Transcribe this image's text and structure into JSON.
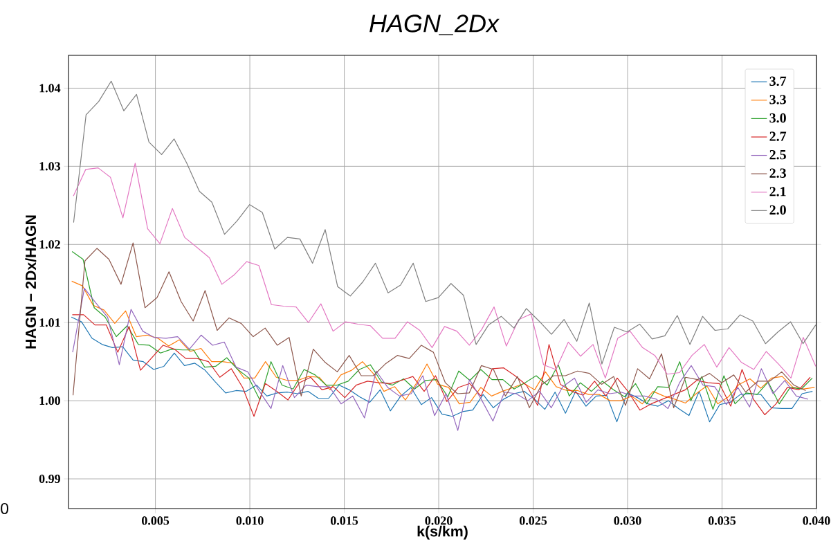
{
  "chart_data": {
    "type": "line",
    "title": "HAGN_2Dx",
    "xlabel": "k(s/km)",
    "ylabel": "HAGN − 2Dx/HAGN",
    "annotations": [
      "0"
    ],
    "xlim": [
      0.0004,
      0.04
    ],
    "ylim": [
      0.9862,
      1.0442
    ],
    "xticks": [
      {
        "value": 0.005,
        "label": "0.005"
      },
      {
        "value": 0.01,
        "label": "0.010"
      },
      {
        "value": 0.015,
        "label": "0.015"
      },
      {
        "value": 0.02,
        "label": "0.020"
      },
      {
        "value": 0.025,
        "label": "0.025"
      },
      {
        "value": 0.03,
        "label": "0.030"
      },
      {
        "value": 0.035,
        "label": "0.035"
      },
      {
        "value": 0.04,
        "label": "0.040"
      }
    ],
    "yticks": [
      {
        "value": 0.99,
        "label": "0.99"
      },
      {
        "value": 1.0,
        "label": "1.00"
      },
      {
        "value": 1.01,
        "label": "1.01"
      },
      {
        "value": 1.02,
        "label": "1.02"
      },
      {
        "value": 1.03,
        "label": "1.03"
      },
      {
        "value": 1.04,
        "label": "1.04"
      }
    ],
    "grid": true,
    "legend": "top right",
    "series": [
      {
        "name": "3.7",
        "color": "#1f77b4",
        "x": [
          0.00055,
          0.00109,
          0.00164,
          0.00218,
          0.00273,
          0.00327,
          0.00382,
          0.00436,
          0.00491,
          0.00545,
          0.006,
          0.00654,
          0.00709,
          0.00763,
          0.00818,
          0.00872,
          0.00927,
          0.00981,
          0.01036,
          0.0109,
          0.01145,
          0.01199,
          0.01254,
          0.01308,
          0.01363,
          0.01417,
          0.01472,
          0.01526,
          0.01581,
          0.01635,
          0.0169,
          0.01744,
          0.01799,
          0.01853,
          0.01908,
          0.01962,
          0.02017,
          0.02071,
          0.02126,
          0.0218,
          0.02235,
          0.02289,
          0.02344,
          0.02398,
          0.02453,
          0.02507,
          0.02562,
          0.02616,
          0.02671,
          0.02725,
          0.0278,
          0.02834,
          0.02889,
          0.02943,
          0.02998,
          0.03052,
          0.03107,
          0.03161,
          0.03216,
          0.0327,
          0.03325,
          0.03379,
          0.03434,
          0.03488,
          0.03543,
          0.03597,
          0.03652,
          0.03706,
          0.03761,
          0.03815,
          0.0387,
          0.03924,
          0.03979
        ],
        "values": [
          1.0107,
          1.0101,
          1.008,
          1.0072,
          1.0068,
          1.0069,
          1.0052,
          1.005,
          1.004,
          1.0044,
          1.0061,
          1.0045,
          1.0048,
          1.0039,
          1.0024,
          1.001,
          1.0013,
          1.0012,
          1.002,
          1.0006,
          1.001,
          1.0011,
          1.0009,
          1.0012,
          1.0003,
          1.0003,
          1.002,
          1.0014,
          1.0005,
          0.9998,
          1.0014,
          0.9987,
          1.0006,
          1.0017,
          0.9995,
          1.0004,
          0.9983,
          0.998,
          0.9986,
          0.9988,
          1.0008,
          0.9991,
          1.0002,
          1.0009,
          1.0012,
          1.0002,
          0.9989,
          1.0011,
          0.9984,
          1.0012,
          0.9993,
          1.0006,
          1.0007,
          0.9973,
          1.001,
          1.0004,
          0.9996,
          0.9993,
          1.0,
          0.999,
          0.9981,
          1.0012,
          0.9973,
          0.9995,
          0.9998,
          1.0008,
          1.0009,
          1.0008,
          0.9991,
          0.999,
          0.999,
          1.0009,
          1.0012
        ]
      },
      {
        "name": "3.3",
        "color": "#ff7f0e",
        "x": [
          0.00057,
          0.00114,
          0.00171,
          0.00228,
          0.00285,
          0.00342,
          0.00399,
          0.00456,
          0.00513,
          0.0057,
          0.00627,
          0.00684,
          0.00741,
          0.00798,
          0.00855,
          0.00912,
          0.00969,
          0.01026,
          0.01083,
          0.0114,
          0.01197,
          0.01254,
          0.01311,
          0.01368,
          0.01425,
          0.01482,
          0.01539,
          0.01596,
          0.01653,
          0.0171,
          0.01767,
          0.01824,
          0.01881,
          0.01938,
          0.01995,
          0.02052,
          0.02109,
          0.02166,
          0.02223,
          0.0228,
          0.02337,
          0.02394,
          0.02451,
          0.02508,
          0.02565,
          0.02622,
          0.02679,
          0.02736,
          0.02793,
          0.0285,
          0.02907,
          0.02964,
          0.03021,
          0.03078,
          0.03135,
          0.03192,
          0.03249,
          0.03306,
          0.03363,
          0.0342,
          0.03477,
          0.03534,
          0.03591,
          0.03648,
          0.03705,
          0.03762,
          0.03819,
          0.03876,
          0.03933,
          0.0399
        ],
        "values": [
          1.0153,
          1.0147,
          1.0122,
          1.0116,
          1.0099,
          1.0115,
          1.0082,
          1.0084,
          1.008,
          1.007,
          1.0078,
          1.0063,
          1.0067,
          1.005,
          1.005,
          1.0048,
          1.0029,
          1.0029,
          1.005,
          1.003,
          1.0026,
          1.0026,
          1.0031,
          1.003,
          1.0014,
          1.0033,
          1.0039,
          1.005,
          1.0035,
          1.0012,
          1.0018,
          1.0001,
          1.0022,
          1.0047,
          1.0021,
          1.0017,
          0.9996,
          0.9998,
          1.0017,
          1.0006,
          1.0012,
          1.0017,
          1.0022,
          1.0014,
          1.0037,
          1.0018,
          1.0013,
          1.0013,
          1.0008,
          1.0008,
          1.0,
          1.0,
          1.0006,
          0.9996,
          1.0012,
          1.0006,
          1.0002,
          0.9997,
          1.0009,
          1.0019,
          0.9996,
          1.0005,
          1.0021,
          1.0028,
          1.0016,
          1.0029,
          1.0031,
          1.0017,
          1.0015,
          1.0017
        ]
      },
      {
        "name": "3.0",
        "color": "#2ca02c",
        "x": [
          0.00059,
          0.00117,
          0.00176,
          0.00234,
          0.00293,
          0.00351,
          0.0041,
          0.00468,
          0.00527,
          0.00585,
          0.00644,
          0.00702,
          0.00761,
          0.00819,
          0.00878,
          0.00936,
          0.00995,
          0.01053,
          0.01112,
          0.0117,
          0.01229,
          0.01287,
          0.01346,
          0.01404,
          0.01463,
          0.01521,
          0.0158,
          0.01638,
          0.01697,
          0.01755,
          0.01814,
          0.01872,
          0.01931,
          0.01989,
          0.02048,
          0.02106,
          0.02165,
          0.02223,
          0.02282,
          0.0234,
          0.02399,
          0.02457,
          0.02516,
          0.02574,
          0.02633,
          0.02691,
          0.0275,
          0.02808,
          0.02867,
          0.02925,
          0.02984,
          0.03042,
          0.03101,
          0.03159,
          0.03218,
          0.03276,
          0.03335,
          0.03393,
          0.03452,
          0.0351,
          0.03569,
          0.03627,
          0.03686,
          0.03744,
          0.03803,
          0.03861,
          0.0392,
          0.03978
        ],
        "values": [
          1.0191,
          1.0181,
          1.0119,
          1.0107,
          1.0082,
          1.0096,
          1.0072,
          1.0071,
          1.0061,
          1.0066,
          1.0065,
          1.0065,
          1.0043,
          1.0044,
          1.0055,
          1.004,
          1.0029,
          1.0001,
          1.005,
          1.002,
          1.0015,
          1.004,
          1.0033,
          1.002,
          1.002,
          1.0025,
          1.004,
          1.0046,
          1.0024,
          1.002,
          1.0028,
          1.0015,
          1.0026,
          1.0027,
          1.0005,
          1.0038,
          1.0026,
          1.004,
          1.0027,
          1.0027,
          1.0015,
          1.0023,
          1.0032,
          1.002,
          1.0046,
          1.0006,
          1.0023,
          1.0012,
          1.0025,
          1.0014,
          1.0005,
          1.0022,
          0.9996,
          1.0018,
          1.0017,
          1.005,
          1.0,
          1.0031,
          0.9989,
          1.0032,
          0.9996,
          1.001,
          1.0008,
          1.0024,
          0.9996,
          1.0017,
          1.0015,
          1.0029
        ]
      },
      {
        "name": "2.7",
        "color": "#d62728",
        "x": [
          0.0006,
          0.0012,
          0.0018,
          0.0024,
          0.00301,
          0.00361,
          0.00421,
          0.00481,
          0.00541,
          0.00601,
          0.00661,
          0.00721,
          0.00781,
          0.00841,
          0.00902,
          0.00962,
          0.01022,
          0.01082,
          0.01142,
          0.01202,
          0.01262,
          0.01322,
          0.01382,
          0.01442,
          0.01503,
          0.01563,
          0.01623,
          0.01683,
          0.01743,
          0.01803,
          0.01863,
          0.01923,
          0.01983,
          0.02043,
          0.02104,
          0.02164,
          0.02224,
          0.02284,
          0.02344,
          0.02404,
          0.02464,
          0.02524,
          0.02584,
          0.02644,
          0.02705,
          0.02765,
          0.02825,
          0.02885,
          0.02945,
          0.03005,
          0.03065,
          0.03125,
          0.03185,
          0.03245,
          0.03306,
          0.03366,
          0.03426,
          0.03486,
          0.03546,
          0.03606,
          0.03666,
          0.03726,
          0.03786,
          0.03846,
          0.03907,
          0.03967
        ],
        "values": [
          1.011,
          1.011,
          1.0097,
          1.0097,
          1.0062,
          1.0095,
          1.0039,
          1.0055,
          1.0071,
          1.0066,
          1.0054,
          1.0054,
          1.005,
          1.003,
          1.0041,
          1.0017,
          0.998,
          1.0022,
          1.0012,
          1.0001,
          1.0023,
          1.003,
          1.0014,
          1.0018,
          1.0004,
          1.002,
          1.0025,
          1.0023,
          1.0022,
          1.0026,
          1.0031,
          1.0012,
          1.0032,
          0.9999,
          1.0017,
          1.0022,
          1.0006,
          1.0041,
          1.0042,
          1.0032,
          1.002,
          0.9994,
          1.0072,
          1.0021,
          1.0012,
          1.0007,
          1.0025,
          1.0006,
          1.0029,
          1.0011,
          0.9988,
          0.9996,
          1.0002,
          1.0008,
          1.0014,
          1.0026,
          1.0023,
          1.0022,
          0.9993,
          1.004,
          1.0002,
          0.9982,
          0.9996,
          1.0017,
          1.0014,
          1.003
        ]
      },
      {
        "name": "2.5",
        "color": "#9467bd",
        "x": [
          0.00062,
          0.00124,
          0.00185,
          0.00247,
          0.00309,
          0.00371,
          0.00433,
          0.00494,
          0.00556,
          0.00618,
          0.0068,
          0.00742,
          0.00803,
          0.00865,
          0.00927,
          0.00989,
          0.01051,
          0.01112,
          0.01174,
          0.01236,
          0.01298,
          0.0136,
          0.01421,
          0.01483,
          0.01545,
          0.01607,
          0.01669,
          0.0173,
          0.01792,
          0.01854,
          0.01916,
          0.01978,
          0.02039,
          0.02101,
          0.02163,
          0.02225,
          0.02287,
          0.02348,
          0.0241,
          0.02472,
          0.02534,
          0.02596,
          0.02657,
          0.02719,
          0.02781,
          0.02843,
          0.02905,
          0.02966,
          0.03028,
          0.0309,
          0.03152,
          0.03214,
          0.03275,
          0.03337,
          0.03399,
          0.03461,
          0.03523,
          0.03584,
          0.03646,
          0.03708,
          0.0377,
          0.03832,
          0.03893,
          0.03955
        ],
        "values": [
          1.0062,
          1.0144,
          1.0125,
          1.0107,
          1.0046,
          1.0117,
          1.0089,
          1.0081,
          1.008,
          1.0082,
          1.0066,
          1.0084,
          1.0071,
          1.0075,
          1.0043,
          1.0037,
          1.0012,
          0.999,
          1.0045,
          1.0004,
          1.002,
          1.0018,
          1.0018,
          0.9996,
          1.0006,
          0.9978,
          1.0038,
          1.0017,
          1.0006,
          1.0009,
          1.0032,
          0.9981,
          1.0009,
          0.9962,
          1.0027,
          1.0002,
          0.9974,
          1.0011,
          1.0009,
          1.0,
          1.0012,
          0.9991,
          1.0018,
          1.0029,
          0.9998,
          1.0014,
          1.0009,
          1.0011,
          1.0006,
          1.0006,
          1.0002,
          0.999,
          1.0023,
          1.0045,
          1.002,
          1.0018,
          0.9995,
          1.0017,
          0.9992,
          1.0041,
          1.0009,
          1.0026,
          1.0006,
          1.0002
        ]
      },
      {
        "name": "2.3",
        "color": "#8c564b",
        "x": [
          0.00064,
          0.00127,
          0.00191,
          0.00254,
          0.00318,
          0.00382,
          0.00445,
          0.00509,
          0.00572,
          0.00636,
          0.007,
          0.00763,
          0.00827,
          0.0089,
          0.00954,
          0.01018,
          0.01081,
          0.01145,
          0.01208,
          0.01272,
          0.01336,
          0.01399,
          0.01463,
          0.01526,
          0.0159,
          0.01654,
          0.01717,
          0.01781,
          0.01844,
          0.01908,
          0.01972,
          0.02035,
          0.02099,
          0.02162,
          0.02226,
          0.0229,
          0.02353,
          0.02417,
          0.0248,
          0.02544,
          0.02608,
          0.02671,
          0.02735,
          0.02798,
          0.02862,
          0.02926,
          0.02989,
          0.03053,
          0.03116,
          0.0318,
          0.03244,
          0.03307,
          0.03371,
          0.03434,
          0.03498,
          0.03562,
          0.03625,
          0.03689,
          0.03752,
          0.03816,
          0.0388,
          0.03943
        ],
        "values": [
          1.0007,
          1.0179,
          1.0195,
          1.0181,
          1.0149,
          1.0202,
          1.0119,
          1.0132,
          1.0165,
          1.0127,
          1.0102,
          1.0141,
          1.009,
          1.0106,
          1.0099,
          1.0082,
          1.0093,
          1.0071,
          1.0081,
          1.0006,
          1.0066,
          1.0049,
          1.0037,
          1.0058,
          1.0032,
          1.0032,
          1.0047,
          1.0058,
          1.0054,
          1.0071,
          1.0062,
          1.0023,
          1.0009,
          1.001,
          1.0045,
          1.004,
          1.0006,
          1.0031,
          0.9991,
          1.002,
          1.0032,
          1.0032,
          1.0038,
          1.0035,
          1.0021,
          1.0031,
          0.9994,
          1.0041,
          1.0028,
          1.006,
          0.9991,
          1.003,
          1.0027,
          1.0035,
          1.0023,
          1.0033,
          1.0011,
          1.0025,
          1.0025,
          1.0037,
          1.002,
          1.0013
        ]
      },
      {
        "name": "2.1",
        "color": "#e377c2",
        "x": [
          0.00066,
          0.00131,
          0.00197,
          0.00262,
          0.00328,
          0.00393,
          0.00459,
          0.00524,
          0.0059,
          0.00655,
          0.00721,
          0.00786,
          0.00852,
          0.00917,
          0.00983,
          0.01048,
          0.01114,
          0.01179,
          0.01245,
          0.0131,
          0.01376,
          0.01441,
          0.01507,
          0.01572,
          0.01638,
          0.01703,
          0.01769,
          0.01834,
          0.019,
          0.01965,
          0.02031,
          0.02096,
          0.02162,
          0.02227,
          0.02293,
          0.02358,
          0.02424,
          0.02489,
          0.02555,
          0.0262,
          0.02686,
          0.02751,
          0.02817,
          0.02882,
          0.02948,
          0.03013,
          0.03079,
          0.03144,
          0.0321,
          0.03275,
          0.03341,
          0.03406,
          0.03472,
          0.03537,
          0.03603,
          0.03668,
          0.03734,
          0.03799,
          0.03865,
          0.0393,
          0.03996
        ],
        "values": [
          1.0262,
          1.0296,
          1.0298,
          1.0286,
          1.0234,
          1.0304,
          1.022,
          1.0201,
          1.0246,
          1.0209,
          1.0196,
          1.0183,
          1.0149,
          1.0161,
          1.0178,
          1.0173,
          1.0123,
          1.0121,
          1.012,
          1.01,
          1.0124,
          1.0089,
          1.0101,
          1.0098,
          1.0096,
          1.008,
          1.008,
          1.0101,
          1.009,
          1.0068,
          1.0095,
          1.0089,
          1.0071,
          1.0091,
          1.012,
          1.007,
          1.0104,
          1.0111,
          1.0046,
          1.004,
          1.0075,
          1.0057,
          1.0072,
          1.0029,
          1.008,
          1.0089,
          1.0068,
          1.0058,
          1.0034,
          1.0036,
          1.0058,
          1.0072,
          1.0043,
          1.0068,
          1.0049,
          1.004,
          1.0063,
          1.0047,
          1.0029,
          1.0081,
          1.0044
        ]
      },
      {
        "name": "2.0",
        "color": "#7f7f7f",
        "x": [
          0.00067,
          0.00133,
          0.002,
          0.00266,
          0.00333,
          0.004,
          0.00466,
          0.00533,
          0.00599,
          0.00666,
          0.00733,
          0.00799,
          0.00866,
          0.00932,
          0.00999,
          0.01066,
          0.01132,
          0.01199,
          0.01265,
          0.01332,
          0.01399,
          0.01465,
          0.01532,
          0.01598,
          0.01665,
          0.01732,
          0.01798,
          0.01865,
          0.01931,
          0.01998,
          0.02065,
          0.02131,
          0.02198,
          0.02264,
          0.02331,
          0.02398,
          0.02464,
          0.02531,
          0.02597,
          0.02664,
          0.02731,
          0.02797,
          0.02864,
          0.0293,
          0.02997,
          0.03064,
          0.0313,
          0.03197,
          0.03263,
          0.0333,
          0.03397,
          0.03463,
          0.0353,
          0.03596,
          0.03663,
          0.0373,
          0.03796,
          0.03863,
          0.03929,
          0.03996
        ],
        "values": [
          1.0228,
          1.0366,
          1.0383,
          1.0409,
          1.0371,
          1.0392,
          1.0331,
          1.0315,
          1.0335,
          1.0304,
          1.0268,
          1.0254,
          1.0213,
          1.023,
          1.0251,
          1.0241,
          1.0194,
          1.0209,
          1.0207,
          1.0176,
          1.0219,
          1.0146,
          1.0134,
          1.0152,
          1.0176,
          1.0138,
          1.0148,
          1.0176,
          1.0127,
          1.0132,
          1.015,
          1.0135,
          1.0072,
          1.0097,
          1.0108,
          1.0093,
          1.0118,
          1.0102,
          1.0085,
          1.0104,
          1.0076,
          1.0125,
          1.0047,
          1.0094,
          1.0088,
          1.0098,
          1.0079,
          1.0083,
          1.0109,
          1.0072,
          1.0108,
          1.009,
          1.0092,
          1.011,
          1.0102,
          1.0073,
          1.0088,
          1.0101,
          1.0073,
          1.0097
        ]
      }
    ]
  }
}
